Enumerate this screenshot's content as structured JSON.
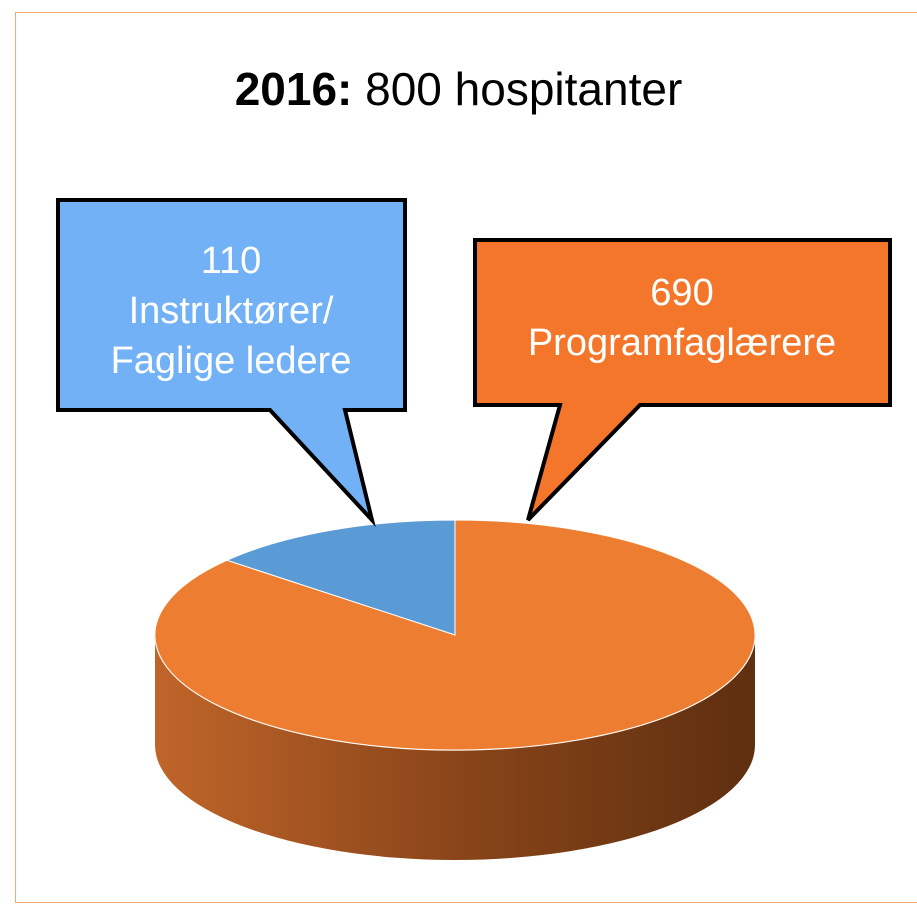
{
  "chart_data": {
    "type": "pie",
    "title_prefix": "2016:",
    "title": "800 hospitanter",
    "categories": [
      "Instruktører/\nFaglige ledere",
      "Programfaglærere"
    ],
    "values": [
      110,
      690
    ],
    "colors": [
      "#5b9bd5",
      "#ed7d31"
    ],
    "callout_colors": [
      "#72b1f5",
      "#f4762a"
    ]
  }
}
